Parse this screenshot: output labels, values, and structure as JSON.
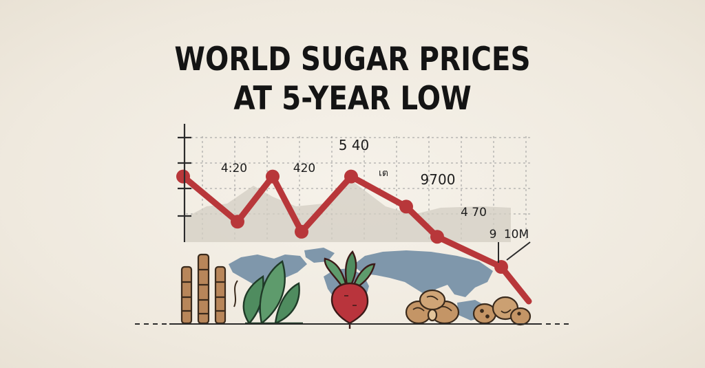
{
  "title_lines": [
    "WORLD SUGAR PRICES",
    "AT 5-YEAR LOW"
  ],
  "colors": {
    "line": "#b8373a",
    "axis": "#2b2b2b",
    "grid": "#9a9a9a",
    "map": "#7f97ab",
    "cane": "#b8865a",
    "leaf": "#4f8c5f",
    "beet": "#b9343c",
    "nut": "#c49566"
  },
  "icons": [
    "sugarcane-icon",
    "leaf-plant-icon",
    "sugar-beet-icon",
    "nut-icon",
    "potato-icon"
  ],
  "chart_data": {
    "type": "line",
    "title": "WORLD SUGAR PRICES AT 5-YEAR LOW",
    "trend": "falling",
    "point_count": 8,
    "x": [
      "1",
      "2",
      "3",
      "4",
      "5",
      "6",
      "7",
      "8"
    ],
    "y": [
      0.9,
      0.45,
      0.9,
      0.35,
      0.9,
      0.6,
      0.3,
      0.0
    ],
    "ylim": [
      0,
      1
    ],
    "grid": true,
    "annotations": [
      {
        "text": "4:20"
      },
      {
        "text": "420"
      },
      {
        "text": "5 40"
      },
      {
        "text": "เต"
      },
      {
        "text": "9700"
      },
      {
        "text": "4 70"
      },
      {
        "text": "9"
      },
      {
        "text": "10M"
      }
    ]
  }
}
